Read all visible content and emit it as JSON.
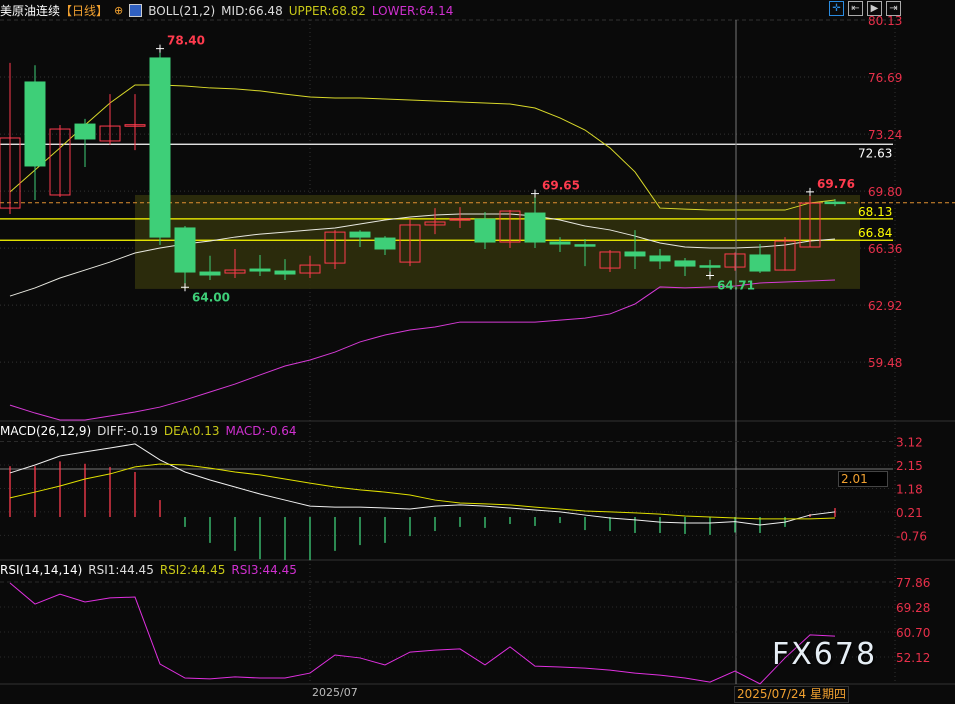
{
  "header": {
    "symbol": "美原油连续",
    "period": "【日线】",
    "indicator": "BOLL(21,2)",
    "mid": "MID:66.48",
    "upper": "UPPER:68.82",
    "lower": "LOWER:64.14"
  },
  "toolbar": {
    "icons": [
      "crosshair-icon",
      "zoom-range-icon",
      "play-range-icon",
      "shift-right-icon"
    ]
  },
  "colors": {
    "up": "#ff3b4e",
    "down": "#3ecf78",
    "upper": "#d9d92a",
    "mid": "#e8e8e0",
    "lower": "#d63ad6",
    "axis": "#e8304a",
    "level": "#ffff00",
    "highlight": "#2f2f0c",
    "current": "#e09030"
  },
  "main_axis": {
    "ticks": [
      "80.13",
      "76.69",
      "73.24",
      "69.80",
      "66.36",
      "62.92",
      "59.48"
    ]
  },
  "levels": [
    {
      "label": "72.63",
      "value": 72.63,
      "color": "#ffffff"
    },
    {
      "label": "68.13",
      "value": 68.13,
      "color": "#ffff00"
    },
    {
      "label": "66.84",
      "value": 66.84,
      "color": "#ffff00"
    }
  ],
  "highlight_zone": {
    "from": 63.9,
    "to": 69.57
  },
  "current_price": 69.1,
  "annotations": [
    {
      "label": "78.40",
      "value": 78.4,
      "index": 6,
      "color": "#ff3b4e",
      "pos": "above"
    },
    {
      "label": "64.00",
      "value": 64.0,
      "index": 7,
      "color": "#3ecf78",
      "pos": "below"
    },
    {
      "label": "69.65",
      "value": 69.65,
      "index": 21,
      "color": "#ff3b4e",
      "pos": "above"
    },
    {
      "label": "64.71",
      "value": 64.71,
      "index": 28,
      "color": "#3ecf78",
      "pos": "below"
    },
    {
      "label": "69.76",
      "value": 69.76,
      "index": 32,
      "color": "#ff3b4e",
      "pos": "above"
    }
  ],
  "chart_data": [
    {
      "type": "candlestick",
      "candles": [
        [
          68.78,
          77.54,
          68.42,
          73.01
        ],
        [
          76.39,
          77.4,
          69.27,
          71.32
        ],
        [
          69.57,
          73.79,
          69.45,
          73.55
        ],
        [
          73.85,
          74.16,
          71.26,
          72.95
        ],
        [
          72.83,
          75.66,
          72.6,
          73.73
        ],
        [
          73.77,
          75.66,
          72.28,
          73.81
        ],
        [
          77.84,
          78.4,
          66.55,
          67.03
        ],
        [
          67.58,
          67.7,
          64.0,
          64.92
        ],
        [
          64.92,
          65.9,
          64.44,
          64.74
        ],
        [
          64.86,
          66.31,
          64.56,
          65.04
        ],
        [
          65.1,
          65.95,
          64.68,
          64.98
        ],
        [
          64.98,
          65.7,
          64.44,
          64.8
        ],
        [
          64.86,
          65.9,
          64.56,
          65.34
        ],
        [
          65.46,
          67.45,
          65.1,
          67.33
        ],
        [
          67.33,
          67.45,
          66.43,
          67.03
        ],
        [
          66.97,
          67.09,
          65.95,
          66.31
        ],
        [
          65.52,
          68.12,
          65.28,
          67.76
        ],
        [
          67.76,
          68.78,
          67.21,
          67.94
        ],
        [
          68.1,
          68.84,
          67.58,
          68.14
        ],
        [
          68.12,
          68.54,
          66.31,
          66.73
        ],
        [
          66.73,
          68.66,
          66.37,
          68.6
        ],
        [
          68.48,
          69.65,
          66.37,
          66.73
        ],
        [
          66.73,
          67.03,
          66.13,
          66.61
        ],
        [
          66.57,
          66.91,
          65.28,
          66.55
        ],
        [
          65.16,
          66.25,
          64.92,
          66.13
        ],
        [
          66.13,
          67.45,
          65.1,
          65.89
        ],
        [
          65.89,
          66.31,
          65.1,
          65.59
        ],
        [
          65.59,
          65.77,
          64.68,
          65.28
        ],
        [
          65.3,
          65.65,
          64.71,
          65.28
        ],
        [
          65.22,
          66.1,
          65.0,
          66.01
        ],
        [
          65.95,
          66.61,
          64.86,
          64.98
        ],
        [
          65.04,
          67.03,
          65.0,
          66.79
        ],
        [
          66.43,
          69.76,
          66.43,
          69.08
        ],
        [
          69.14,
          69.33,
          68.9,
          69.08
        ]
      ],
      "boll_upper": [
        69.75,
        71.08,
        72.41,
        73.79,
        75.12,
        76.21,
        76.21,
        76.15,
        76.03,
        75.97,
        75.85,
        75.66,
        75.48,
        75.42,
        75.42,
        75.36,
        75.3,
        75.24,
        75.18,
        75.12,
        75.06,
        74.82,
        74.22,
        73.49,
        72.41,
        70.96,
        68.78,
        68.72,
        68.66,
        68.66,
        68.66,
        68.66,
        69.09,
        69.27
      ],
      "boll_mid": [
        63.47,
        63.96,
        64.56,
        65.04,
        65.52,
        66.07,
        66.37,
        66.61,
        66.79,
        67.03,
        67.21,
        67.33,
        67.46,
        67.58,
        67.82,
        68.06,
        68.24,
        68.36,
        68.42,
        68.42,
        68.42,
        68.3,
        68.06,
        67.7,
        67.46,
        67.09,
        66.67,
        66.43,
        66.37,
        66.37,
        66.43,
        66.55,
        66.79,
        66.91
      ],
      "boll_lower": [
        56.89,
        56.41,
        55.99,
        55.99,
        56.23,
        56.47,
        56.77,
        57.2,
        57.68,
        58.16,
        58.71,
        59.25,
        59.61,
        60.09,
        60.7,
        61.12,
        61.42,
        61.6,
        61.9,
        61.9,
        61.9,
        61.9,
        62.02,
        62.14,
        62.39,
        62.99,
        64.02,
        63.96,
        64.02,
        64.08,
        64.26,
        64.32,
        64.38,
        64.44
      ],
      "x_label": "2025/07",
      "crosshair_date": "2025/07/24 星期四"
    },
    {
      "type": "bar+line",
      "title": "MACD(26,12,9)",
      "diff_label": "DIFF:-0.19",
      "dea_label": "DEA:0.13",
      "macd_label": "MACD:-0.64",
      "ticks": [
        "3.12",
        "2.15",
        "1.18",
        "0.21",
        "-0.76"
      ],
      "crosshair_value": "2.01",
      "histogram": [
        2.1,
        2.1,
        2.3,
        2.2,
        2.07,
        1.86,
        0.7,
        -0.41,
        -1.07,
        -1.4,
        -1.74,
        -1.78,
        -1.78,
        -1.4,
        -1.16,
        -1.07,
        -0.79,
        -0.58,
        -0.41,
        -0.45,
        -0.29,
        -0.37,
        -0.25,
        -0.54,
        -0.58,
        -0.66,
        -0.66,
        -0.7,
        -0.74,
        -0.64,
        -0.66,
        -0.41,
        0.12,
        0.37
      ],
      "diff": [
        1.82,
        2.15,
        2.52,
        2.69,
        2.85,
        3.02,
        2.36,
        1.86,
        1.53,
        1.24,
        0.95,
        0.7,
        0.45,
        0.41,
        0.41,
        0.37,
        0.33,
        0.45,
        0.5,
        0.45,
        0.37,
        0.29,
        0.21,
        0.08,
        -0.04,
        -0.12,
        -0.21,
        -0.25,
        -0.25,
        -0.19,
        -0.33,
        -0.21,
        0.08,
        0.21
      ],
      "dea": [
        0.79,
        1.03,
        1.28,
        1.57,
        1.78,
        2.07,
        2.19,
        2.15,
        2.02,
        1.86,
        1.74,
        1.57,
        1.4,
        1.24,
        1.12,
        1.03,
        0.91,
        0.7,
        0.58,
        0.54,
        0.5,
        0.41,
        0.33,
        0.25,
        0.21,
        0.17,
        0.12,
        0.04,
        0.0,
        -0.04,
        -0.08,
        -0.08,
        -0.08,
        -0.04
      ]
    },
    {
      "type": "line",
      "title": "RSI(14,14,14)",
      "rsi1_label": "RSI1:44.45",
      "rsi2_label": "RSI2:44.45",
      "rsi3_label": "RSI3:44.45",
      "ticks": [
        "77.86",
        "69.28",
        "60.70",
        "52.12"
      ],
      "rsi": [
        77.5,
        70.3,
        73.7,
        71.0,
        72.4,
        72.7,
        49.7,
        44.9,
        44.6,
        45.3,
        44.9,
        44.9,
        46.6,
        52.8,
        51.8,
        49.4,
        53.8,
        54.5,
        54.9,
        49.4,
        55.6,
        49.0,
        48.7,
        48.3,
        47.6,
        46.6,
        45.9,
        44.9,
        43.5,
        47.3,
        42.9,
        51.8,
        59.7,
        59.3
      ]
    }
  ],
  "watermark": "FX678"
}
